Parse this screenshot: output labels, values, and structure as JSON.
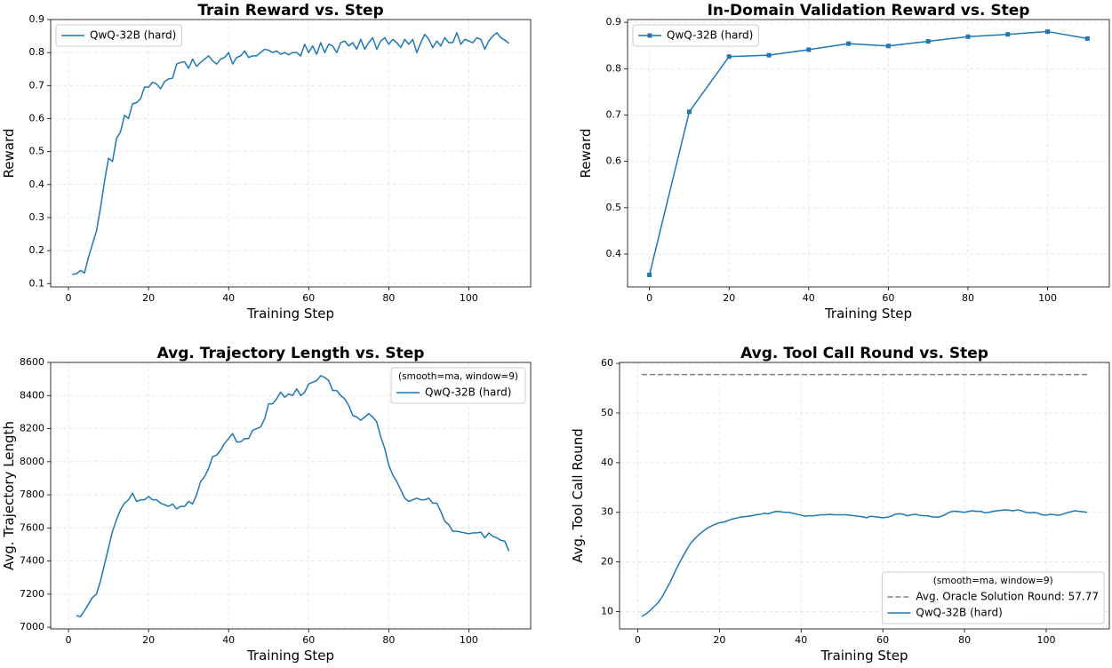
{
  "chart_data": [
    {
      "type": "line",
      "title": "Train Reward vs. Step",
      "xlabel": "Training Step",
      "ylabel": "Reward",
      "x": [
        1,
        2,
        3,
        4,
        5,
        6,
        7,
        8,
        9,
        10,
        11,
        12,
        13,
        14,
        15,
        16,
        17,
        18,
        19,
        20,
        21,
        22,
        23,
        24,
        25,
        26,
        27,
        28,
        29,
        30,
        31,
        32,
        33,
        34,
        35,
        36,
        37,
        38,
        39,
        40,
        41,
        42,
        43,
        44,
        45,
        46,
        47,
        48,
        49,
        50,
        51,
        52,
        53,
        54,
        55,
        56,
        57,
        58,
        59,
        60,
        61,
        62,
        63,
        64,
        65,
        66,
        67,
        68,
        69,
        70,
        71,
        72,
        73,
        74,
        75,
        76,
        77,
        78,
        79,
        80,
        81,
        82,
        83,
        84,
        85,
        86,
        87,
        88,
        89,
        90,
        91,
        92,
        93,
        94,
        95,
        96,
        97,
        98,
        99,
        100,
        101,
        102,
        103,
        104,
        105,
        106,
        107,
        108,
        109,
        110
      ],
      "series": [
        {
          "name": "QwQ-32B (hard)",
          "color": "#1f77b4",
          "values": [
            0.128,
            0.13,
            0.14,
            0.132,
            0.18,
            0.22,
            0.26,
            0.33,
            0.41,
            0.48,
            0.47,
            0.54,
            0.56,
            0.61,
            0.6,
            0.645,
            0.648,
            0.66,
            0.695,
            0.695,
            0.71,
            0.705,
            0.69,
            0.712,
            0.72,
            0.722,
            0.765,
            0.77,
            0.772,
            0.752,
            0.78,
            0.758,
            0.77,
            0.78,
            0.79,
            0.775,
            0.765,
            0.78,
            0.785,
            0.8,
            0.765,
            0.785,
            0.79,
            0.805,
            0.785,
            0.79,
            0.79,
            0.8,
            0.81,
            0.807,
            0.8,
            0.805,
            0.795,
            0.8,
            0.793,
            0.8,
            0.8,
            0.79,
            0.825,
            0.8,
            0.82,
            0.795,
            0.83,
            0.8,
            0.825,
            0.82,
            0.8,
            0.83,
            0.835,
            0.82,
            0.83,
            0.81,
            0.84,
            0.81,
            0.83,
            0.845,
            0.81,
            0.835,
            0.845,
            0.825,
            0.84,
            0.83,
            0.815,
            0.84,
            0.825,
            0.84,
            0.8,
            0.83,
            0.855,
            0.84,
            0.815,
            0.835,
            0.82,
            0.845,
            0.83,
            0.83,
            0.86,
            0.825,
            0.84,
            0.835,
            0.83,
            0.845,
            0.84,
            0.81,
            0.835,
            0.85,
            0.86,
            0.845,
            0.838,
            0.828
          ]
        }
      ],
      "xlim": [
        -4.45,
        115.45
      ],
      "ylim": [
        0.09,
        0.9
      ],
      "xticks": [
        0,
        20,
        40,
        60,
        80,
        100
      ],
      "yticks": [
        0.1,
        0.2,
        0.3,
        0.4,
        0.5,
        0.6,
        0.7,
        0.8,
        0.9
      ],
      "grid": true,
      "legend": "upper left"
    },
    {
      "type": "line",
      "title": "In-Domain Validation Reward vs. Step",
      "xlabel": "Training Step",
      "ylabel": "Reward",
      "x": [
        0,
        10,
        20,
        30,
        40,
        50,
        60,
        70,
        80,
        90,
        100,
        110
      ],
      "series": [
        {
          "name": "QwQ-32B (hard)",
          "color": "#1f77b4",
          "marker": "square",
          "values": [
            0.355,
            0.707,
            0.826,
            0.829,
            0.841,
            0.854,
            0.849,
            0.859,
            0.869,
            0.874,
            0.88,
            0.865
          ]
        }
      ],
      "xlim": [
        -5.5,
        115.5
      ],
      "ylim": [
        0.329,
        0.906
      ],
      "xticks": [
        0,
        20,
        40,
        60,
        80,
        100
      ],
      "yticks": [
        0.4,
        0.5,
        0.6,
        0.7,
        0.8,
        0.9
      ],
      "grid": true,
      "legend": "upper left"
    },
    {
      "type": "line",
      "title": "Avg. Trajectory Length vs. Step",
      "xlabel": "Training Step",
      "ylabel": "Avg. Trajectory Length",
      "x": [
        2,
        3,
        4,
        5,
        6,
        7,
        8,
        9,
        10,
        11,
        12,
        13,
        14,
        15,
        16,
        17,
        18,
        19,
        20,
        21,
        22,
        23,
        24,
        25,
        26,
        27,
        28,
        29,
        30,
        31,
        32,
        33,
        34,
        35,
        36,
        37,
        38,
        39,
        40,
        41,
        42,
        43,
        44,
        45,
        46,
        47,
        48,
        49,
        50,
        51,
        52,
        53,
        54,
        55,
        56,
        57,
        58,
        59,
        60,
        61,
        62,
        63,
        64,
        65,
        66,
        67,
        68,
        69,
        70,
        71,
        72,
        73,
        74,
        75,
        76,
        77,
        78,
        79,
        80,
        81,
        82,
        83,
        84,
        85,
        86,
        87,
        88,
        89,
        90,
        91,
        92,
        93,
        94,
        95,
        96,
        97,
        98,
        99,
        100,
        101,
        102,
        103,
        104,
        105,
        106,
        107,
        108,
        109,
        110
      ],
      "series": [
        {
          "name": "QwQ-32B (hard)",
          "color": "#1f77b4",
          "values": [
            7070,
            7065,
            7100,
            7140,
            7180,
            7200,
            7280,
            7380,
            7480,
            7580,
            7650,
            7710,
            7750,
            7770,
            7810,
            7760,
            7770,
            7770,
            7790,
            7770,
            7770,
            7750,
            7740,
            7730,
            7745,
            7715,
            7730,
            7730,
            7760,
            7745,
            7800,
            7880,
            7910,
            7960,
            8030,
            8040,
            8070,
            8110,
            8140,
            8170,
            8120,
            8120,
            8140,
            8140,
            8190,
            8200,
            8210,
            8260,
            8350,
            8350,
            8380,
            8420,
            8390,
            8410,
            8400,
            8440,
            8400,
            8420,
            8470,
            8480,
            8490,
            8520,
            8510,
            8490,
            8430,
            8430,
            8400,
            8380,
            8340,
            8280,
            8270,
            8250,
            8270,
            8290,
            8270,
            8240,
            8150,
            8080,
            7980,
            7920,
            7880,
            7830,
            7780,
            7760,
            7770,
            7780,
            7770,
            7770,
            7780,
            7750,
            7750,
            7700,
            7640,
            7620,
            7580,
            7580,
            7575,
            7570,
            7565,
            7570,
            7570,
            7575,
            7540,
            7570,
            7550,
            7540,
            7525,
            7520,
            7460
          ]
        }
      ],
      "xlim": [
        -4.45,
        115.45
      ],
      "ylim": [
        6990,
        8600
      ],
      "xticks": [
        0,
        20,
        40,
        60,
        80,
        100
      ],
      "yticks": [
        7000,
        7200,
        7400,
        7600,
        7800,
        8000,
        8200,
        8400,
        8600
      ],
      "grid": true,
      "legend": "upper right",
      "legend_title": "(smooth=ma, window=9)"
    },
    {
      "type": "line",
      "title": "Avg. Tool Call Round vs. Step",
      "xlabel": "Training Step",
      "ylabel": "Avg. Tool Call Round",
      "x": [
        1,
        2,
        3,
        4,
        5,
        6,
        7,
        8,
        9,
        10,
        11,
        12,
        13,
        14,
        15,
        16,
        17,
        18,
        19,
        20,
        21,
        22,
        23,
        24,
        25,
        26,
        27,
        28,
        29,
        30,
        31,
        32,
        33,
        34,
        35,
        36,
        37,
        38,
        39,
        40,
        41,
        42,
        43,
        44,
        45,
        46,
        47,
        48,
        49,
        50,
        51,
        52,
        53,
        54,
        55,
        56,
        57,
        58,
        59,
        60,
        61,
        62,
        63,
        64,
        65,
        66,
        67,
        68,
        69,
        70,
        71,
        72,
        73,
        74,
        75,
        76,
        77,
        78,
        79,
        80,
        81,
        82,
        83,
        84,
        85,
        86,
        87,
        88,
        89,
        90,
        91,
        92,
        93,
        94,
        95,
        96,
        97,
        98,
        99,
        100,
        101,
        102,
        103,
        104,
        105,
        106,
        107,
        108,
        109,
        110
      ],
      "hlines": [
        {
          "name": "Avg. Oracle Solution Round: 57.77",
          "value": 57.77,
          "color": "#808080"
        }
      ],
      "series": [
        {
          "name": "QwQ-32B (hard)",
          "color": "#1f77b4",
          "values": [
            9,
            9.5,
            10.2,
            11,
            11.8,
            13,
            14.5,
            16,
            17.8,
            19.5,
            21,
            22.5,
            23.8,
            24.7,
            25.5,
            26.2,
            26.8,
            27.2,
            27.6,
            27.9,
            28,
            28.3,
            28.6,
            28.8,
            29,
            29.1,
            29.2,
            29.3,
            29.5,
            29.6,
            29.8,
            29.7,
            30,
            30.2,
            30.1,
            30,
            30,
            29.8,
            29.6,
            29.4,
            29.2,
            29.3,
            29.3,
            29.4,
            29.5,
            29.5,
            29.6,
            29.5,
            29.5,
            29.5,
            29.5,
            29.4,
            29.3,
            29.2,
            29.1,
            28.9,
            29.2,
            29.1,
            29,
            28.9,
            29,
            29.2,
            29.6,
            29.7,
            29.6,
            29.3,
            29.5,
            29.6,
            29.4,
            29.3,
            29.3,
            29.1,
            29,
            29.1,
            29.4,
            29.9,
            30.2,
            30.2,
            30.1,
            30,
            30.2,
            30.3,
            30.2,
            30.2,
            29.9,
            30,
            30.2,
            30.3,
            30.4,
            30.5,
            30.4,
            30.3,
            30.5,
            30.3,
            30,
            29.9,
            30,
            29.8,
            29.5,
            29.4,
            29.6,
            29.5,
            29.4,
            29.6,
            29.9,
            30.1,
            30.3,
            30.2,
            30.1,
            30
          ]
        }
      ],
      "xlim": [
        -4.45,
        115.45
      ],
      "ylim": [
        6.5,
        60.2
      ],
      "xticks": [
        0,
        20,
        40,
        60,
        80,
        100
      ],
      "yticks": [
        10,
        20,
        30,
        40,
        50,
        60
      ],
      "grid": true,
      "legend": "lower right",
      "legend_title": "(smooth=ma, window=9)"
    }
  ]
}
